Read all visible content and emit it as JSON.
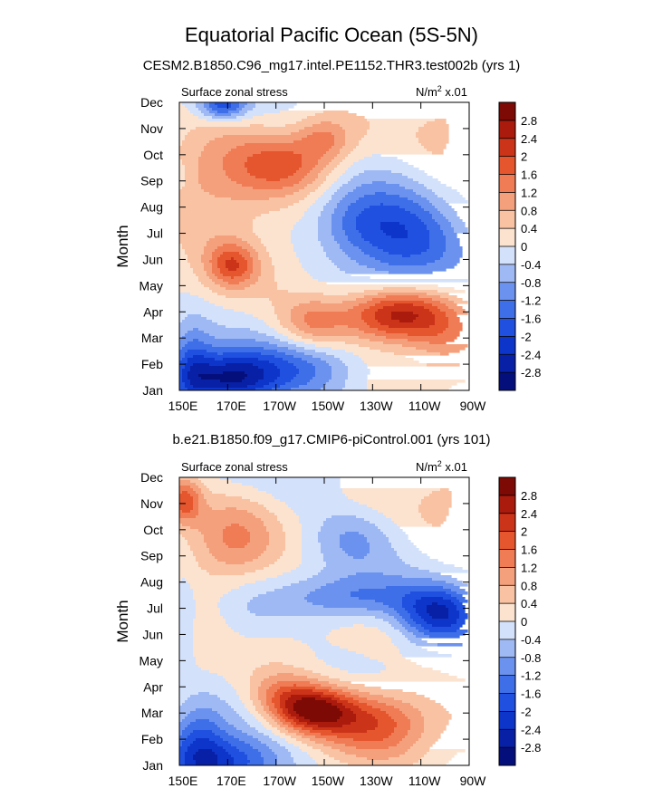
{
  "chart_data": {
    "title": "Equatorial Pacific Ocean (5S-5N)",
    "panels": [
      {
        "type": "heatmap",
        "subtitle": "CESM2.B1850.C96_mg17.intel.PE1152.THR3.test002b (yrs 1)",
        "left_label": "Surface zonal stress",
        "right_label_main": "N/m",
        "right_label_sup": "2",
        "right_label_tail": " x.01",
        "ylabel": "Month",
        "months": [
          "Jan",
          "Feb",
          "Mar",
          "Apr",
          "May",
          "Jun",
          "Jul",
          "Aug",
          "Sep",
          "Oct",
          "Nov",
          "Dec"
        ],
        "x_ticks": [
          "150E",
          "170E",
          "170W",
          "150W",
          "130W",
          "110W",
          "90W"
        ],
        "x_lon_east": [
          150,
          270
        ],
        "features": [
          {
            "lon": 170,
            "month": 1.4,
            "amp": -2.7,
            "sx": 14,
            "sy": 0.75
          },
          {
            "lon": 155,
            "month": 2.0,
            "amp": -1.2,
            "sx": 6,
            "sy": 1.2
          },
          {
            "lon": 200,
            "month": 1.8,
            "amp": -1.3,
            "sx": 18,
            "sy": 0.8
          },
          {
            "lon": 240,
            "month": 3.9,
            "amp": 2.9,
            "sx": 16,
            "sy": 0.75
          },
          {
            "lon": 205,
            "month": 3.6,
            "amp": 1.2,
            "sx": 10,
            "sy": 0.7
          },
          {
            "lon": 260,
            "month": 2.9,
            "amp": 0.7,
            "sx": 10,
            "sy": 0.9
          },
          {
            "lon": 243,
            "month": 6.7,
            "amp": -2.0,
            "sx": 17,
            "sy": 1.3
          },
          {
            "lon": 222,
            "month": 7.4,
            "amp": -0.9,
            "sx": 12,
            "sy": 0.9
          },
          {
            "lon": 172,
            "month": 5.8,
            "amp": 1.5,
            "sx": 7,
            "sy": 0.6
          },
          {
            "lon": 168,
            "month": 8.5,
            "amp": 1.0,
            "sx": 20,
            "sy": 1.8
          },
          {
            "lon": 195,
            "month": 9.6,
            "amp": 1.3,
            "sx": 14,
            "sy": 0.8
          },
          {
            "lon": 210,
            "month": 10.6,
            "amp": 1.0,
            "sx": 8,
            "sy": 0.6
          },
          {
            "lon": 168,
            "month": 11.9,
            "amp": -1.8,
            "sx": 7,
            "sy": 0.4
          },
          {
            "lon": 150,
            "month": 9.1,
            "amp": -0.4,
            "sx": 3,
            "sy": 0.5
          },
          {
            "lon": 260,
            "month": 10.5,
            "amp": 0.5,
            "sx": 10,
            "sy": 1.5
          }
        ]
      },
      {
        "type": "heatmap",
        "subtitle": "b.e21.B1850.f09_g17.CMIP6-piControl.001 (yrs 101)",
        "left_label": "Surface zonal stress",
        "right_label_main": "N/m",
        "right_label_sup": "2",
        "right_label_tail": " x.01",
        "ylabel": "Month",
        "months": [
          "Jan",
          "Feb",
          "Mar",
          "Apr",
          "May",
          "Jun",
          "Jul",
          "Aug",
          "Sep",
          "Oct",
          "Nov",
          "Dec"
        ],
        "x_ticks": [
          "150E",
          "170E",
          "170W",
          "150W",
          "130W",
          "110W",
          "90W"
        ],
        "x_lon_east": [
          150,
          270
        ],
        "features": [
          {
            "lon": 168,
            "month": 1.0,
            "amp": -2.2,
            "sx": 17,
            "sy": 0.8
          },
          {
            "lon": 158,
            "month": 2.0,
            "amp": -1.2,
            "sx": 8,
            "sy": 1.0
          },
          {
            "lon": 205,
            "month": 3.1,
            "amp": 2.8,
            "sx": 12,
            "sy": 0.65
          },
          {
            "lon": 232,
            "month": 2.7,
            "amp": 1.8,
            "sx": 16,
            "sy": 0.9
          },
          {
            "lon": 192,
            "month": 3.8,
            "amp": 0.9,
            "sx": 10,
            "sy": 0.6
          },
          {
            "lon": 258,
            "month": 6.8,
            "amp": -2.4,
            "sx": 12,
            "sy": 0.8
          },
          {
            "lon": 222,
            "month": 7.4,
            "amp": -1.3,
            "sx": 20,
            "sy": 0.6
          },
          {
            "lon": 178,
            "month": 6.5,
            "amp": -0.3,
            "sx": 8,
            "sy": 1.2
          },
          {
            "lon": 152,
            "month": 11.1,
            "amp": 1.8,
            "sx": 5,
            "sy": 0.6
          },
          {
            "lon": 172,
            "month": 9.3,
            "amp": 1.1,
            "sx": 13,
            "sy": 1.3
          },
          {
            "lon": 222,
            "month": 9.8,
            "amp": -0.7,
            "sx": 12,
            "sy": 0.9
          },
          {
            "lon": 152,
            "month": 6.6,
            "amp": -0.3,
            "sx": 3,
            "sy": 1.5
          },
          {
            "lon": 260,
            "month": 10.8,
            "amp": 0.5,
            "sx": 10,
            "sy": 1.2
          },
          {
            "lon": 205,
            "month": 11.8,
            "amp": -0.35,
            "sx": 10,
            "sy": 0.6
          }
        ]
      }
    ],
    "colorbar": {
      "levels": [
        -2.8,
        -2.4,
        -2,
        -1.6,
        -1.2,
        -0.8,
        -0.4,
        0,
        0.4,
        0.8,
        1.2,
        1.6,
        2,
        2.4,
        2.8
      ],
      "labels": [
        "-2.8",
        "-2.4",
        "-2",
        "-1.6",
        "-1.2",
        "-0.8",
        "-0.4",
        "0",
        "0.4",
        "0.8",
        "1.2",
        "1.6",
        "2",
        "2.4",
        "2.8"
      ],
      "colors": [
        "#050f7c",
        "#0820a5",
        "#0e35c9",
        "#1f50df",
        "#3e6ee8",
        "#6b92ee",
        "#9fb9f5",
        "#d3e1fb",
        "#fbe3d0",
        "#f8c2a3",
        "#f5a07c",
        "#f07c55",
        "#e6562e",
        "#cc3419",
        "#aa1a0d",
        "#7d0a05"
      ]
    }
  }
}
